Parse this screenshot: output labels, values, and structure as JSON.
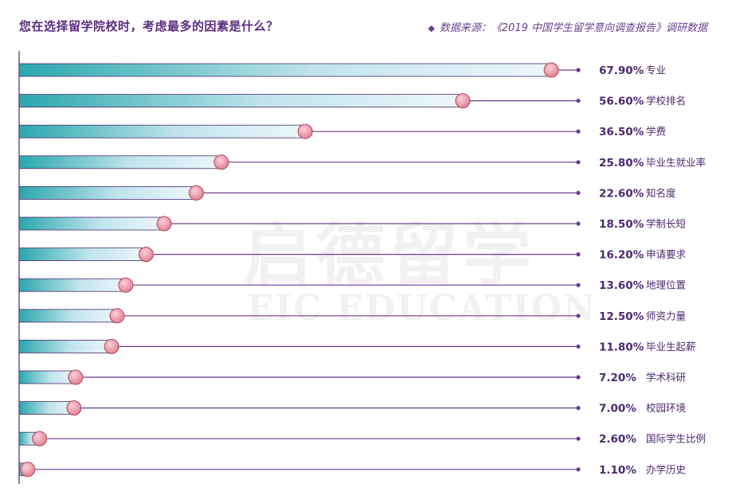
{
  "title": "您在选择留学院校时，考虑最多的因素是什么？",
  "source": "数据来源：《2019 中国学生留学意向调查报告》调研数据",
  "source_icon": "diamond-icon",
  "watermark": {
    "cn": "启德留学",
    "en": "EIC EDUCATION"
  },
  "colors": {
    "bar_dark": "#2aa7ad",
    "bar_light": "#e8f3fa",
    "bar_edge": "#4b2a6e",
    "line": "#6a3d8f",
    "marker": "#e98a9b",
    "marker_edge": "#b0485e",
    "label": "#4b2a6e"
  },
  "chart_data": {
    "type": "bar",
    "orientation": "horizontal",
    "title": "您在选择留学院校时，考虑最多的因素是什么？",
    "categories": [
      "专业",
      "学校排名",
      "学费",
      "毕业生就业率",
      "知名度",
      "学制长短",
      "申请要求",
      "地理位置",
      "师资力量",
      "毕业生起薪",
      "学术科研",
      "校园环境",
      "国际学生比例",
      "办学历史"
    ],
    "values": [
      67.9,
      56.6,
      36.5,
      25.8,
      22.6,
      18.5,
      16.2,
      13.6,
      12.5,
      11.8,
      7.2,
      7.0,
      2.6,
      1.1
    ],
    "value_labels": [
      "67.90%",
      "56.60%",
      "36.50%",
      "25.80%",
      "22.60%",
      "18.50%",
      "16.20%",
      "13.60%",
      "12.50%",
      "11.80%",
      "7.20%",
      "7.00%",
      "2.60%",
      "1.10%"
    ],
    "xlim": [
      0,
      100
    ],
    "grid": false,
    "legend": "none"
  }
}
